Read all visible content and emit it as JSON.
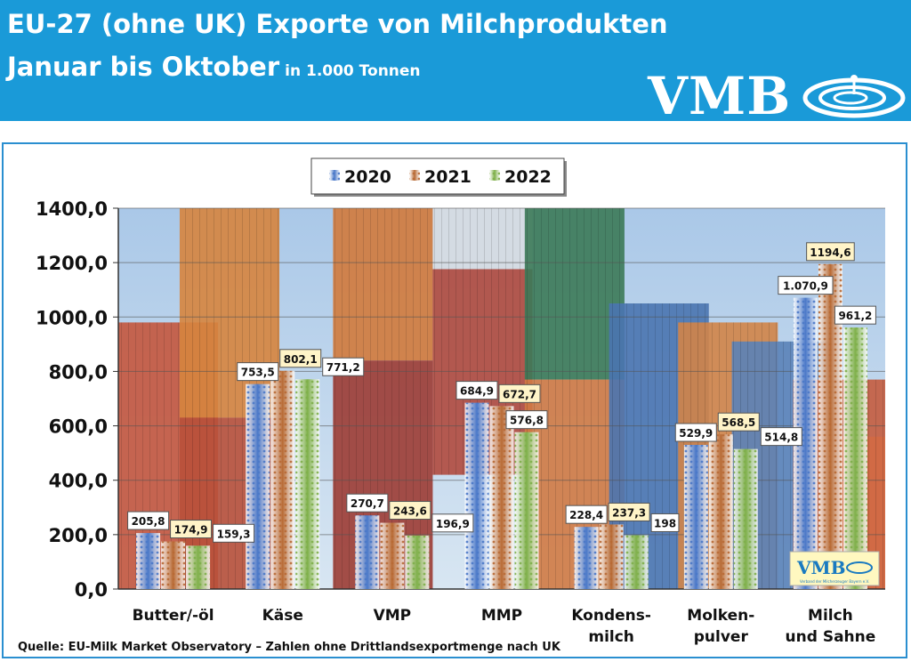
{
  "header": {
    "title_line1": "EU-27 (ohne UK) Exporte von Milchprodukten",
    "title_line2": "Januar bis Oktober",
    "unit": "in 1.000 Tonnen",
    "logo_text": "VMB",
    "logo_icon": "swirl-logo-icon",
    "background_color": "#1a9ad8"
  },
  "chart_data": {
    "type": "bar",
    "categories": [
      "Butter/-öl",
      "Käse",
      "VMP",
      "MMP",
      "Kondens-\nmilch",
      "Molken-\npulver",
      "Milch\nund Sahne"
    ],
    "series": [
      {
        "name": "2020",
        "values": [
          205.8,
          753.5,
          270.7,
          684.9,
          228.4,
          529.9,
          1070.9
        ],
        "labels": [
          "205,8",
          "753,5",
          "270,7",
          "684,9",
          "228,4",
          "529,9",
          "1.070,9"
        ],
        "color": "#4a78c8"
      },
      {
        "name": "2021",
        "values": [
          174.9,
          802.1,
          243.6,
          672.7,
          237.3,
          568.5,
          1194.6
        ],
        "labels": [
          "174,9",
          "802,1",
          "243,6",
          "672,7",
          "237,3",
          "568,5",
          "1194,6"
        ],
        "color": "#b86a34"
      },
      {
        "name": "2022",
        "values": [
          159.3,
          771.2,
          196.9,
          576.8,
          198,
          514.8,
          961.2
        ],
        "labels": [
          "159,3",
          "771,2",
          "196,9",
          "576,8",
          "198",
          "514,8",
          "961,2"
        ],
        "color": "#7fb04a"
      }
    ],
    "ylim": [
      0,
      1400
    ],
    "yticks": [
      0,
      200,
      400,
      600,
      800,
      1000,
      1200,
      1400
    ],
    "ytick_labels": [
      "0,0",
      "200,0",
      "400,0",
      "600,0",
      "800,0",
      "1000,0",
      "1200,0",
      "1400,0"
    ],
    "legend_position": "top-center",
    "grid": true
  },
  "watermark": {
    "text": "VMB",
    "subtext": "Verband der Milcherzeuger Bayern e.V."
  },
  "source": "Quelle: EU-Milk Market Observatory – Zahlen ohne Drittlandsexportmenge nach UK"
}
